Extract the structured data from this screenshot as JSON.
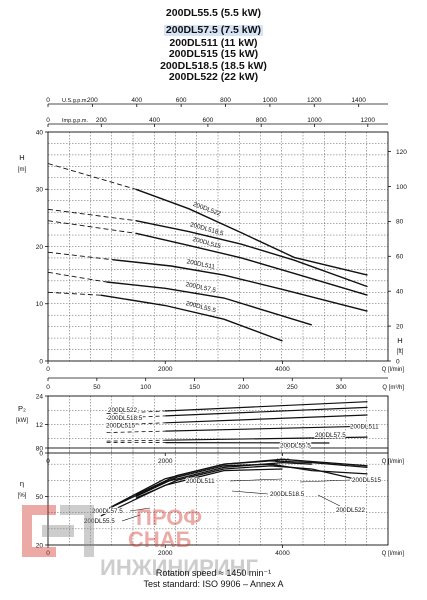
{
  "titles": [
    "200DL55.5 (5.5 kW)",
    "200DL57.5 (7.5 kW)",
    "200DL511 (11 kW)",
    "200DL515 (15 kW)",
    "200DL518.5 (18.5 kW)",
    "200DL522 (22 kW)"
  ],
  "highlighted_title_index": 1,
  "footer": {
    "rotation": "Rotation speed ≈ 1450 min⁻¹",
    "standard": "Test standard: ISO 9906 – Annex A"
  },
  "watermark": {
    "line1": "ПРОФ",
    "line2": "СНАБ",
    "line3": "ИНЖИНИРИНГ",
    "color_red": "#d0372b",
    "color_grey": "#8a8a8a"
  },
  "chart_data": [
    {
      "id": "head",
      "type": "line",
      "ylabel": "H",
      "yunit": "[m]",
      "ylim": [
        0,
        40
      ],
      "yticks": [
        0,
        10,
        20,
        30,
        40
      ],
      "right_label": "H",
      "right_unit": "[ft]",
      "right_ticks": [
        0,
        20,
        40,
        60,
        80,
        100,
        120
      ],
      "top_axes": [
        {
          "label": "U.S.g.p.m.",
          "ticks": [
            0,
            200,
            400,
            600,
            800,
            1000,
            1200,
            1400
          ]
        },
        {
          "label": "Imp.g.p.m.",
          "ticks": [
            0,
            200,
            400,
            600,
            800,
            1000,
            1200
          ]
        }
      ],
      "bottom_axes": [
        {
          "label": "Q [l/min]",
          "ticks": [
            0,
            2000,
            4000
          ]
        },
        {
          "label": "Q [m³/h]",
          "ticks": [
            0,
            50,
            100,
            150,
            200,
            250,
            300
          ]
        }
      ],
      "series": [
        {
          "name": "200DL522",
          "dashed": [
            [
              0,
              34.5
            ],
            [
              1500,
              30
            ]
          ],
          "solid": [
            [
              1500,
              30
            ],
            [
              2400,
              26.6
            ],
            [
              3300,
              22.4
            ],
            [
              4200,
              18.1
            ],
            [
              5450,
              15
            ]
          ]
        },
        {
          "name": "200DL518.5",
          "dashed": [
            [
              0,
              26.5
            ],
            [
              1500,
              24.5
            ]
          ],
          "solid": [
            [
              1500,
              24.5
            ],
            [
              2400,
              22.6
            ],
            [
              3300,
              20.4
            ],
            [
              4200,
              17.6
            ],
            [
              5450,
              13
            ]
          ]
        },
        {
          "name": "200DL515",
          "dashed": [
            [
              0,
              24.5
            ],
            [
              1500,
              22.3
            ]
          ],
          "solid": [
            [
              1500,
              22.3
            ],
            [
              2400,
              20.2
            ],
            [
              3300,
              18
            ],
            [
              4200,
              15.3
            ],
            [
              5450,
              11.5
            ]
          ]
        },
        {
          "name": "200DL511",
          "dashed": [
            [
              0,
              19
            ],
            [
              1100,
              17.7
            ]
          ],
          "solid": [
            [
              1100,
              17.7
            ],
            [
              2100,
              16.6
            ],
            [
              3000,
              15
            ],
            [
              4000,
              12.5
            ],
            [
              5450,
              8.7
            ]
          ]
        },
        {
          "name": "200DL57.5",
          "dashed": [
            [
              0,
              15.5
            ],
            [
              1000,
              13.8
            ]
          ],
          "solid": [
            [
              1000,
              13.8
            ],
            [
              2000,
              12.7
            ],
            [
              3000,
              11
            ],
            [
              4500,
              6.3
            ]
          ]
        },
        {
          "name": "200DL55.5",
          "dashed": [
            [
              0,
              12
            ],
            [
              900,
              11.5
            ]
          ],
          "solid": [
            [
              900,
              11.5
            ],
            [
              2000,
              9.7
            ],
            [
              3000,
              7.3
            ],
            [
              4000,
              3.5
            ]
          ]
        }
      ]
    },
    {
      "id": "power",
      "type": "line",
      "ylabel": "P₂",
      "yunit": "[kW]",
      "ylim": [
        0,
        24
      ],
      "yticks": [
        0,
        12,
        24
      ],
      "xlabel": "Q [l/min]",
      "xticks": [
        0,
        2000,
        4000
      ],
      "series": [
        {
          "name": "200DL522",
          "points": [
            [
              2000,
              17.7
            ],
            [
              5450,
              21.6
            ]
          ]
        },
        {
          "name": "200DL518.5",
          "points": [
            [
              2000,
              15.6
            ],
            [
              5450,
              19.2
            ]
          ]
        },
        {
          "name": "200DL515",
          "points": [
            [
              2000,
              12.7
            ],
            [
              5450,
              16
            ]
          ]
        },
        {
          "name": "200DL511",
          "points": [
            [
              2000,
              9.2
            ],
            [
              5450,
              11.3
            ]
          ]
        },
        {
          "name": "200DL57.5",
          "points": [
            [
              2000,
              5.4
            ],
            [
              5450,
              6.7
            ]
          ]
        },
        {
          "name": "200DL55.5",
          "points": [
            [
              2000,
              4.4
            ],
            [
              4800,
              4.2
            ]
          ]
        }
      ]
    },
    {
      "id": "efficiency",
      "type": "line",
      "ylabel": "η",
      "yunit": "[%]",
      "ylim": [
        20,
        80
      ],
      "yticks": [
        20,
        50,
        80
      ],
      "xlabel": "Q [l/min]",
      "xticks": [
        0,
        2000,
        4000
      ],
      "series": [
        {
          "name": "200DL522",
          "points": [
            [
              1500,
              49
            ],
            [
              2200,
              60
            ],
            [
              3000,
              67
            ],
            [
              3800,
              69
            ],
            [
              4500,
              67
            ],
            [
              5450,
              59
            ]
          ]
        },
        {
          "name": "200DL518.5",
          "points": [
            [
              1500,
              50
            ],
            [
              2200,
              62
            ],
            [
              3000,
              69
            ],
            [
              3800,
              70
            ],
            [
              4500,
              66
            ],
            [
              5450,
              64
            ]
          ]
        },
        {
          "name": "200DL515",
          "points": [
            [
              1500,
              51
            ],
            [
              2200,
              63
            ],
            [
              3000,
              70
            ],
            [
              3800,
              72
            ],
            [
              4500,
              71
            ],
            [
              5450,
              68
            ]
          ]
        },
        {
          "name": "200DL511",
          "points": [
            [
              1100,
              44
            ],
            [
              2000,
              61
            ],
            [
              3000,
              70
            ],
            [
              4000,
              73
            ],
            [
              5450,
              69
            ]
          ]
        },
        {
          "name": "200DL57.5",
          "points": [
            [
              1000,
              42
            ],
            [
              2000,
              59
            ],
            [
              3000,
              68
            ],
            [
              4000,
              71
            ],
            [
              4500,
              70
            ]
          ]
        },
        {
          "name": "200DL55.5",
          "points": [
            [
              900,
              38
            ],
            [
              2000,
              57
            ],
            [
              3000,
              66
            ],
            [
              4000,
              67
            ]
          ]
        }
      ]
    }
  ]
}
